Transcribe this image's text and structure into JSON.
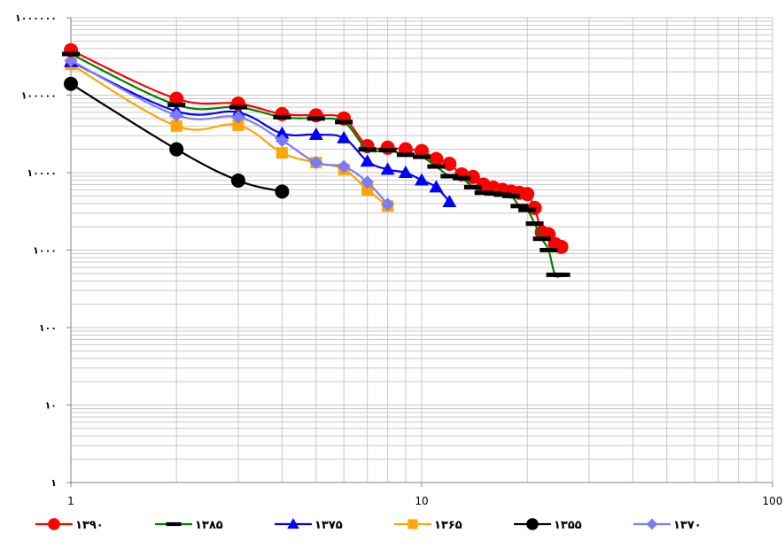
{
  "chart_data": {
    "type": "line",
    "xscale": "log",
    "yscale": "log",
    "xlim": [
      1,
      100
    ],
    "ylim": [
      1,
      1000000
    ],
    "grid": true,
    "legend_position": "bottom",
    "x_tick_labels": [
      "1",
      "10",
      "100"
    ],
    "y_tick_labels": [
      "۱",
      "۱۰",
      "۱۰۰",
      "۱۰۰۰",
      "۱۰۰۰۰",
      "۱۰۰۰۰۰",
      "۱۰۰۰۰۰۰"
    ],
    "series": [
      {
        "name": "۱۳۹۰",
        "color": "#ff0000",
        "line_color": "#ff0000",
        "marker": "circle",
        "x": [
          1,
          2,
          3,
          4,
          5,
          6,
          7,
          8,
          9,
          10,
          11,
          12,
          13,
          14,
          15,
          16,
          17,
          18,
          19,
          20,
          21,
          22,
          23,
          24,
          25
        ],
        "y": [
          380000,
          90000,
          78000,
          57000,
          55000,
          50000,
          22000,
          21000,
          20000,
          19000,
          15000,
          13000,
          9500,
          8800,
          7000,
          6400,
          6000,
          5700,
          5500,
          5300,
          3500,
          1700,
          1600,
          1200,
          1100
        ]
      },
      {
        "name": "۱۳۸۵",
        "color": "#000000",
        "line_color": "#008000",
        "marker": "dash",
        "x": [
          1,
          2,
          3,
          4,
          5,
          6,
          7,
          8,
          9,
          10,
          11,
          12,
          13,
          14,
          15,
          16,
          17,
          18,
          19,
          20,
          21,
          22,
          23,
          24,
          25
        ],
        "y": [
          340000,
          75000,
          70000,
          52000,
          50000,
          45000,
          20000,
          19500,
          17000,
          16000,
          12000,
          9000,
          8500,
          6500,
          5500,
          5400,
          5200,
          5000,
          3700,
          3300,
          2200,
          1400,
          1000,
          480,
          480
        ]
      },
      {
        "name": "۱۳۷۵",
        "color": "#0000ff",
        "line_color": "#0000ff",
        "marker": "triangle",
        "x": [
          1,
          2,
          3,
          4,
          5,
          6,
          7,
          8,
          9,
          10,
          11,
          12
        ],
        "y": [
          270000,
          62000,
          60000,
          32000,
          31000,
          28000,
          14000,
          11000,
          10000,
          8000,
          6500,
          4200
        ]
      },
      {
        "name": "۱۳۶۵",
        "color": "#ffa500",
        "line_color": "#ffa500",
        "marker": "square",
        "x": [
          1,
          2,
          3,
          4,
          5,
          6,
          7,
          8
        ],
        "y": [
          250000,
          40000,
          41000,
          18000,
          13500,
          11000,
          6000,
          3700
        ]
      },
      {
        "name": "۱۳۵۵",
        "color": "#000000",
        "line_color": "#000000",
        "marker": "circle",
        "x": [
          1,
          2,
          3,
          4
        ],
        "y": [
          140000,
          20000,
          7900,
          5700
        ]
      },
      {
        "name": "۱۳۷۰",
        "color": "#7b7bf5",
        "line_color": "#7b7bf5",
        "marker": "diamond",
        "x": [
          1,
          2,
          3,
          4,
          5,
          6,
          7,
          8
        ],
        "y": [
          280000,
          55000,
          52000,
          26000,
          13500,
          12000,
          7500,
          3900
        ]
      }
    ]
  }
}
